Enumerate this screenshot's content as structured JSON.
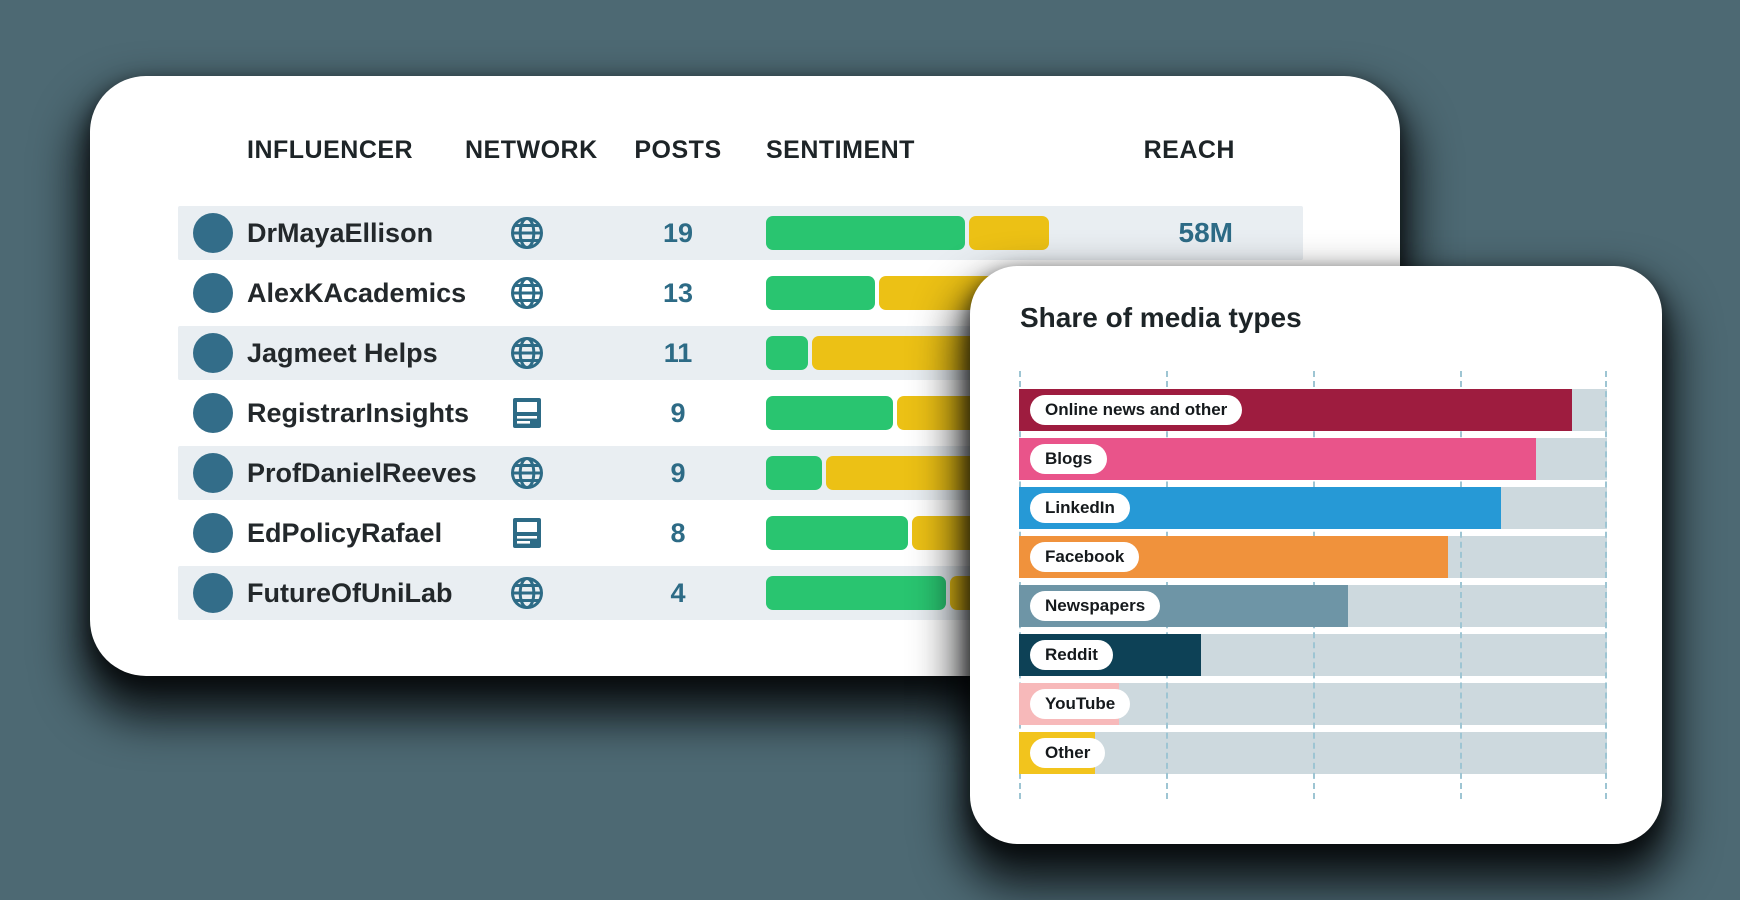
{
  "page": {
    "background_color": "#4d6973"
  },
  "influencer_table": {
    "columns": [
      "INFLUENCER",
      "NETWORK",
      "POSTS",
      "SENTIMENT",
      "REACH"
    ],
    "rows": [
      {
        "name": "DrMayaEllison",
        "network_icon": "globe-icon",
        "posts": "19",
        "sentiment": {
          "positive_width": 199,
          "neutral_width": 80
        },
        "reach": "58M"
      },
      {
        "name": "AlexKAcademics",
        "network_icon": "globe-icon",
        "posts": "13",
        "sentiment": {
          "positive_width": 109,
          "neutral_width": 160
        },
        "reach": ""
      },
      {
        "name": "Jagmeet Helps",
        "network_icon": "globe-icon",
        "posts": "11",
        "sentiment": {
          "positive_width": 42,
          "neutral_width": 230
        },
        "reach": ""
      },
      {
        "name": "RegistrarInsights",
        "network_icon": "newspaper-icon",
        "posts": "9",
        "sentiment": {
          "positive_width": 127,
          "neutral_width": 140
        },
        "reach": ""
      },
      {
        "name": "ProfDanielReeves",
        "network_icon": "globe-icon",
        "posts": "9",
        "sentiment": {
          "positive_width": 56,
          "neutral_width": 205
        },
        "reach": ""
      },
      {
        "name": "EdPolicyRafael",
        "network_icon": "newspaper-icon",
        "posts": "8",
        "sentiment": {
          "positive_width": 142,
          "neutral_width": 115
        },
        "reach": ""
      },
      {
        "name": "FutureOfUniLab",
        "network_icon": "globe-icon",
        "posts": "4",
        "sentiment": {
          "positive_width": 180,
          "neutral_width": 85
        },
        "reach": ""
      }
    ],
    "colors": {
      "sentiment_positive": "#29c570",
      "sentiment_neutral": "#ecc115",
      "accent_text": "#2d6b86",
      "avatar": "#336d89",
      "row_stripe": "#e9eef2"
    }
  },
  "media_chart": {
    "title": "Share of media types",
    "chart_data": {
      "type": "bar",
      "orientation": "horizontal",
      "categories": [
        "Online news and other",
        "Blogs",
        "LinkedIn",
        "Facebook",
        "Newspapers",
        "Reddit",
        "YouTube",
        "Other"
      ],
      "values": [
        94,
        88,
        82,
        73,
        56,
        31,
        17,
        13
      ],
      "bar_colors": [
        "#9e1c3f",
        "#e9548a",
        "#2699d6",
        "#f0923c",
        "#6e95a6",
        "#0d4156",
        "#f7b9ba",
        "#f2c41d"
      ],
      "title": "Share of media types",
      "xlabel": "",
      "ylabel": "",
      "xlim": [
        0,
        100
      ],
      "gridlines": [
        0,
        25,
        50,
        75,
        100
      ],
      "grid_style": "dashed-vertical",
      "track_color": "#cdd9de",
      "legend": "none"
    }
  }
}
